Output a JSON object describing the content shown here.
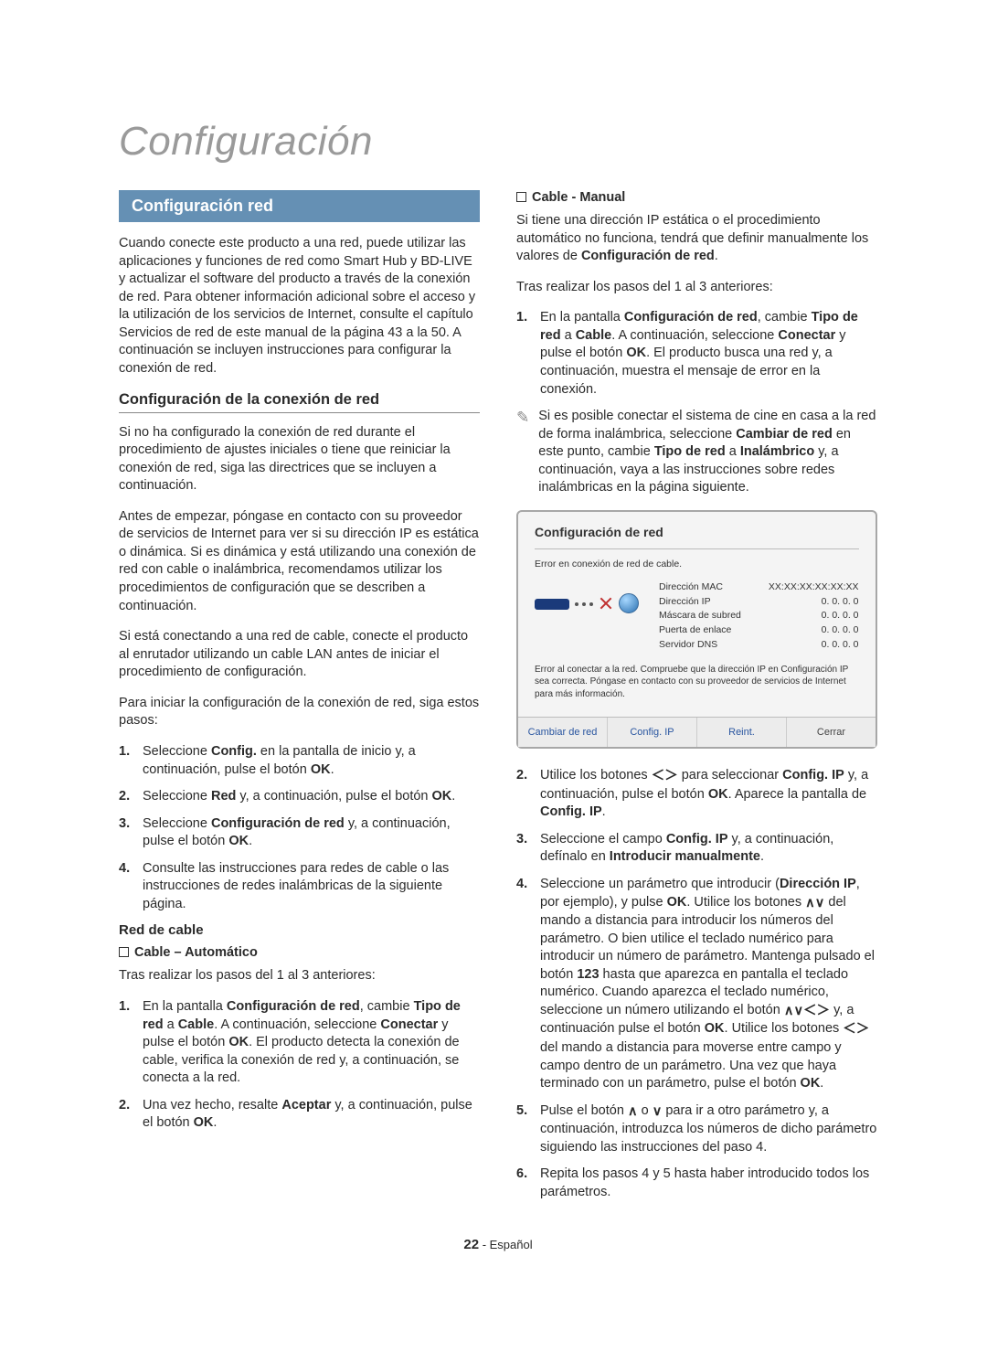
{
  "chapter_title": "Configuración",
  "left": {
    "section_header": "Configuración red",
    "intro": "Cuando conecte este producto a una red, puede utilizar las aplicaciones y funciones de red como Smart Hub y BD-LIVE y actualizar el software del producto a través de la conexión de red. Para obtener información adicional sobre el acceso y la utilización de los servicios de Internet, consulte el capítulo Servicios de red de este manual de la página 43 a la 50. A continuación se incluyen instrucciones para configurar la conexión de red.",
    "subhead": "Configuración de la conexión de red",
    "p1": "Si no ha configurado la conexión de red durante el procedimiento de ajustes iniciales o tiene que reiniciar la conexión de red, siga las directrices que se incluyen a continuación.",
    "p2": "Antes de empezar, póngase en contacto con su proveedor de servicios de Internet para ver si su dirección IP es estática o dinámica. Si es dinámica y está utilizando una conexión de red con cable o inalámbrica, recomendamos utilizar los procedimientos de configuración que se describen a continuación.",
    "p3": "Si está conectando a una red de cable, conecte el producto al enrutador utilizando un cable LAN antes de iniciar el procedimiento de configuración.",
    "p4": "Para iniciar la configuración de la conexión de red, siga estos pasos:",
    "steps_main": [
      "Seleccione <b>Config.</b> en la pantalla de inicio y, a continuación, pulse el botón <b>OK</b>.",
      "Seleccione <b>Red</b> y, a continuación, pulse el botón <b>OK</b>.",
      "Seleccione <b>Configuración de red</b> y, a continuación, pulse el botón <b>OK</b>.",
      "Consulte las instrucciones para redes de cable o las instrucciones de redes inalámbricas de la siguiente página."
    ],
    "cable_head": "Red de cable",
    "auto_title": "Cable – Automático",
    "auto_intro": "Tras realizar los pasos del 1 al 3 anteriores:",
    "auto_steps": [
      "En la pantalla <b>Configuración de red</b>, cambie <b>Tipo de red</b> a <b>Cable</b>. A continuación, seleccione <b>Conectar</b> y pulse el botón <b>OK</b>. El producto detecta la conexión de cable, verifica la conexión de red y, a continuación, se conecta a la red.",
      "Una vez hecho, resalte <b>Aceptar</b> y, a continuación, pulse el botón <b>OK</b>."
    ]
  },
  "right": {
    "manual_title": "Cable - Manual",
    "manual_p1": "Si tiene una dirección IP estática o el procedimiento automático no funciona, tendrá que definir manualmente los valores de <b>Configuración de red</b>.",
    "manual_p2": "Tras realizar los pasos del 1 al 3 anteriores:",
    "manual_step1": "En la pantalla <b>Configuración de red</b>, cambie <b>Tipo de red</b> a <b>Cable</b>. A continuación, seleccione <b>Conectar</b> y pulse el botón <b>OK</b>. El producto busca una red y, a continuación, muestra el mensaje de error en la conexión.",
    "note1": "Si es posible conectar el sistema de cine en casa a la red de forma inalámbrica, seleccione <b>Cambiar de red</b> en este punto, cambie <b>Tipo de red</b> a <b>Inalámbrico</b> y, a continuación, vaya a las instrucciones sobre redes inalámbricas en la página siguiente.",
    "dialog": {
      "title": "Configuración de red",
      "error_line": "Error en conexión de red de cable.",
      "rows": {
        "mac": {
          "label": "Dirección MAC",
          "value": "XX:XX:XX:XX:XX:XX"
        },
        "ip": {
          "label": "Dirección IP",
          "value": "0. 0. 0. 0"
        },
        "mask": {
          "label": "Máscara de subred",
          "value": "0. 0. 0. 0"
        },
        "gw": {
          "label": "Puerta de enlace",
          "value": "0. 0. 0. 0"
        },
        "dns": {
          "label": "Servidor DNS",
          "value": "0. 0. 0. 0"
        }
      },
      "msg": "Error al conectar a la red. Compruebe que la dirección IP en Configuración IP sea correcta. Póngase en contacto con su proveedor de servicios de Internet para más información.",
      "buttons": [
        "Cambiar de red",
        "Config. IP",
        "Reint.",
        "Cerrar"
      ],
      "colors": {
        "border": "#a7a7a7",
        "bg": "#f4f4f4",
        "btn_text": "#2a56a0"
      }
    },
    "steps_after": [
      "Utilice los botones <span class='arrows'>＜＞</span> para seleccionar <b>Config. IP</b> y, a continuación, pulse el botón <b>OK</b>. Aparece la pantalla de <b>Config. IP</b>.",
      "Seleccione el campo <b>Config. IP</b> y, a continuación, defínalo en <b>Introducir manualmente</b>.",
      "Seleccione un parámetro que introducir (<b>Dirección IP</b>, por ejemplo), y pulse <b>OK</b>. Utilice los botones <span class='arrows'>∧∨</span> del mando a distancia para introducir los números del parámetro. O bien utilice el teclado numérico para introducir un número de parámetro. Mantenga pulsado el botón <b>123</b> hasta que aparezca en pantalla el teclado numérico. Cuando aparezca el teclado numérico, seleccione un número utilizando el botón <span class='arrows'>∧∨＜＞</span> y, a continuación pulse el botón <b>OK</b>. Utilice los botones <span class='arrows'>＜＞</span> del mando a distancia para moverse entre campo y campo dentro de un parámetro. Una vez que haya terminado con un parámetro, pulse el botón <b>OK</b>.",
      "Pulse el botón <span class='arrows'>∧</span> o <span class='arrows'>∨</span> para ir a otro parámetro y, a continuación, introduzca los números de dicho parámetro siguiendo las instrucciones del paso 4.",
      "Repita los pasos 4 y 5 hasta haber introducido todos los parámetros."
    ]
  },
  "footer": {
    "page": "22",
    "lang": "- Español"
  }
}
